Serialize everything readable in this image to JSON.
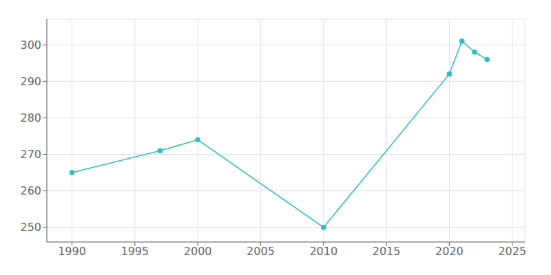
{
  "chart_data": {
    "type": "line",
    "x": [
      1990,
      1997,
      2000,
      2010,
      2020,
      2021,
      2022,
      2023
    ],
    "values": [
      265,
      271,
      274,
      250,
      292,
      301,
      298,
      296
    ],
    "color": "#2fbfbf",
    "marker": "circle",
    "xlim": [
      1988,
      2026
    ],
    "ylim": [
      246,
      307
    ],
    "xticks": [
      1990,
      1995,
      2000,
      2005,
      2010,
      2015,
      2020,
      2025
    ],
    "yticks": [
      250,
      260,
      270,
      280,
      290,
      300
    ],
    "grid": true
  }
}
